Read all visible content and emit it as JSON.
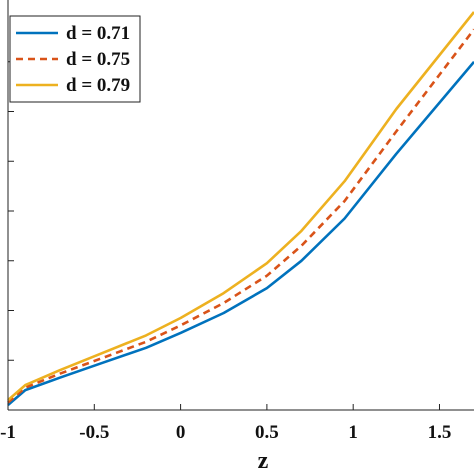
{
  "chart_data": {
    "type": "line",
    "xlabel": "z",
    "ylabel": "",
    "xlim": [
      -1,
      1.7
    ],
    "ylim": [
      0,
      8
    ],
    "x_ticks": [
      -1,
      -0.5,
      0,
      0.5,
      1,
      1.5
    ],
    "x_tick_labels": [
      "-1",
      "-0.5",
      "0",
      "0.5",
      "1",
      "1.5"
    ],
    "y_ticks": [
      1,
      2,
      3,
      4,
      5,
      6,
      7
    ],
    "legend_position": "top-left",
    "series": [
      {
        "name": "d = 0.71",
        "color": "#0072BD",
        "style": "solid",
        "x": [
          -1,
          -0.9,
          -0.7,
          -0.45,
          -0.2,
          0,
          0.25,
          0.5,
          0.7,
          0.95,
          1.25,
          1.7
        ],
        "y": [
          0.1,
          0.4,
          0.65,
          0.95,
          1.25,
          1.55,
          1.95,
          2.45,
          3.0,
          3.85,
          5.15,
          7.0
        ]
      },
      {
        "name": "d = 0.75",
        "color": "#D95319",
        "style": "dashed",
        "x": [
          -1,
          -0.9,
          -0.7,
          -0.45,
          -0.2,
          0,
          0.25,
          0.5,
          0.7,
          0.95,
          1.25,
          1.7
        ],
        "y": [
          0.15,
          0.45,
          0.73,
          1.05,
          1.37,
          1.7,
          2.15,
          2.7,
          3.3,
          4.2,
          5.6,
          7.65
        ]
      },
      {
        "name": "d = 0.79",
        "color": "#EDB120",
        "style": "solid",
        "x": [
          -1,
          -0.9,
          -0.7,
          -0.45,
          -0.2,
          0,
          0.25,
          0.5,
          0.7,
          0.95,
          1.25,
          1.7
        ],
        "y": [
          0.2,
          0.5,
          0.8,
          1.15,
          1.5,
          1.85,
          2.35,
          2.95,
          3.6,
          4.6,
          6.05,
          8.0
        ]
      }
    ]
  }
}
